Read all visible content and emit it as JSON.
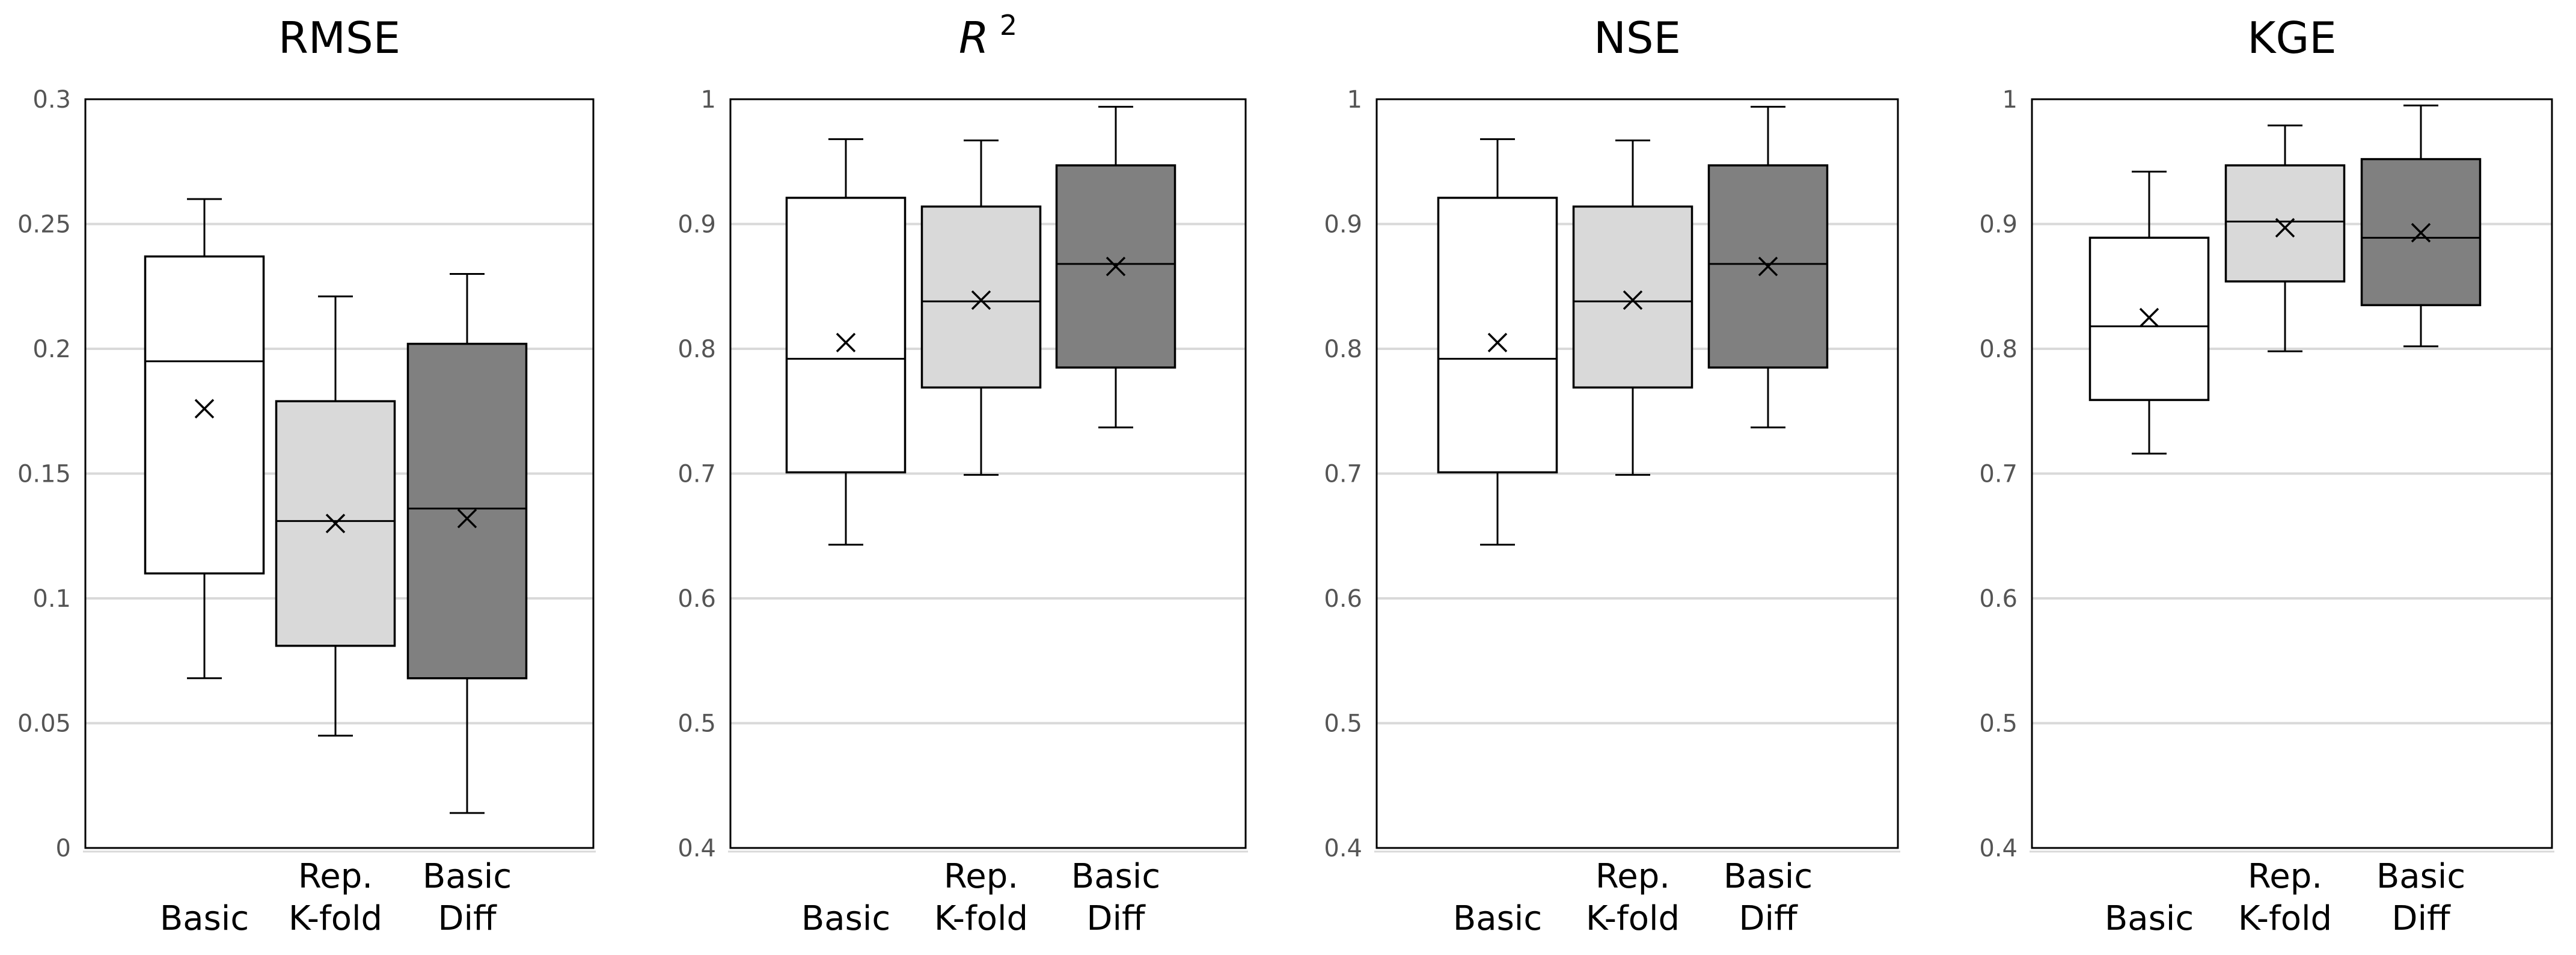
{
  "figure": {
    "groups": [
      "Basic",
      "Rep. K-fold",
      "Basic Diff"
    ],
    "group_lines": [
      [
        "Basic"
      ],
      [
        "Rep.",
        "K-fold"
      ],
      [
        "Basic",
        "Diff"
      ]
    ],
    "fill_colors": [
      "#ffffff",
      "#d9d9d9",
      "#808080"
    ]
  },
  "chart_data": [
    {
      "type": "box",
      "title": "RMSE",
      "ylim": [
        0,
        0.3
      ],
      "ticks": [
        0,
        0.05,
        0.1,
        0.15,
        0.2,
        0.25,
        0.3
      ],
      "tick_labels": [
        "0",
        "0.05",
        "0.1",
        "0.15",
        "0.2",
        "0.25",
        "0.3"
      ],
      "categories": [
        "Basic",
        "Rep. K-fold",
        "Basic Diff"
      ],
      "boxes": [
        {
          "name": "Basic",
          "min": 0.068,
          "q1": 0.11,
          "median": 0.195,
          "q3": 0.237,
          "max": 0.26,
          "mean": 0.176
        },
        {
          "name": "Rep. K-fold",
          "min": 0.045,
          "q1": 0.081,
          "median": 0.131,
          "q3": 0.179,
          "max": 0.221,
          "mean": 0.13
        },
        {
          "name": "Basic Diff",
          "min": 0.014,
          "q1": 0.068,
          "median": 0.136,
          "q3": 0.202,
          "max": 0.23,
          "mean": 0.132
        }
      ]
    },
    {
      "type": "box",
      "title": "R",
      "title_superscript": "2",
      "ylim": [
        0.4,
        1
      ],
      "ticks": [
        0.4,
        0.5,
        0.6,
        0.7,
        0.8,
        0.9,
        1
      ],
      "tick_labels": [
        "0.4",
        "0.5",
        "0.6",
        "0.7",
        "0.8",
        "0.9",
        "1"
      ],
      "categories": [
        "Basic",
        "Rep. K-fold",
        "Basic Diff"
      ],
      "boxes": [
        {
          "name": "Basic",
          "min": 0.643,
          "q1": 0.701,
          "median": 0.792,
          "q3": 0.921,
          "max": 0.968,
          "mean": 0.805
        },
        {
          "name": "Rep. K-fold",
          "min": 0.699,
          "q1": 0.769,
          "median": 0.838,
          "q3": 0.914,
          "max": 0.967,
          "mean": 0.839
        },
        {
          "name": "Basic Diff",
          "min": 0.737,
          "q1": 0.785,
          "median": 0.868,
          "q3": 0.947,
          "max": 0.994,
          "mean": 0.866
        }
      ]
    },
    {
      "type": "box",
      "title": "NSE",
      "ylim": [
        0.4,
        1
      ],
      "ticks": [
        0.4,
        0.5,
        0.6,
        0.7,
        0.8,
        0.9,
        1
      ],
      "tick_labels": [
        "0.4",
        "0.5",
        "0.6",
        "0.7",
        "0.8",
        "0.9",
        "1"
      ],
      "categories": [
        "Basic",
        "Rep. K-fold",
        "Basic Diff"
      ],
      "boxes": [
        {
          "name": "Basic",
          "min": 0.643,
          "q1": 0.701,
          "median": 0.792,
          "q3": 0.921,
          "max": 0.968,
          "mean": 0.805
        },
        {
          "name": "Rep. K-fold",
          "min": 0.699,
          "q1": 0.769,
          "median": 0.838,
          "q3": 0.914,
          "max": 0.967,
          "mean": 0.839
        },
        {
          "name": "Basic Diff",
          "min": 0.737,
          "q1": 0.785,
          "median": 0.868,
          "q3": 0.947,
          "max": 0.994,
          "mean": 0.866
        }
      ]
    },
    {
      "type": "box",
      "title": "KGE",
      "ylim": [
        0.4,
        1
      ],
      "ticks": [
        0.4,
        0.5,
        0.6,
        0.7,
        0.8,
        0.9,
        1
      ],
      "tick_labels": [
        "0.4",
        "0.5",
        "0.6",
        "0.7",
        "0.8",
        "0.9",
        "1"
      ],
      "categories": [
        "Basic",
        "Rep. K-fold",
        "Basic Diff"
      ],
      "boxes": [
        {
          "name": "Basic",
          "min": 0.716,
          "q1": 0.759,
          "median": 0.818,
          "q3": 0.889,
          "max": 0.942,
          "mean": 0.825
        },
        {
          "name": "Rep. K-fold",
          "min": 0.798,
          "q1": 0.854,
          "median": 0.902,
          "q3": 0.947,
          "max": 0.979,
          "mean": 0.897
        },
        {
          "name": "Basic Diff",
          "min": 0.802,
          "q1": 0.835,
          "median": 0.889,
          "q3": 0.952,
          "max": 0.995,
          "mean": 0.893
        }
      ]
    }
  ]
}
